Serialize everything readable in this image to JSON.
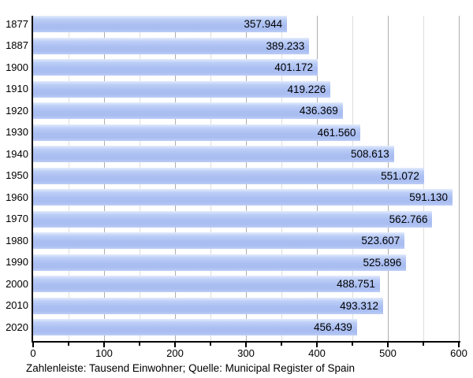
{
  "chart_data": {
    "type": "bar",
    "orientation": "horizontal",
    "title": "",
    "categories": [
      "1877",
      "1887",
      "1900",
      "1910",
      "1920",
      "1930",
      "1940",
      "1950",
      "1960",
      "1970",
      "1980",
      "1990",
      "2000",
      "2010",
      "2020"
    ],
    "values": [
      357.944,
      389.233,
      401.172,
      419.226,
      436.369,
      461.56,
      508.613,
      551.072,
      591.13,
      562.766,
      523.607,
      525.896,
      488.751,
      493.312,
      456.439
    ],
    "value_labels": [
      "357.944",
      "389.233",
      "401.172",
      "419.226",
      "436.369",
      "461.560",
      "508.613",
      "551.072",
      "591.130",
      "562.766",
      "523.607",
      "525.896",
      "488.751",
      "493.312",
      "456.439"
    ],
    "unit": "Tausend Einwohner",
    "xlabel": "",
    "ylabel": "",
    "xlim": [
      0,
      600
    ],
    "x_major_ticks": [
      0,
      100,
      200,
      300,
      400,
      500,
      600
    ],
    "x_minor_step": 50,
    "grid": true,
    "legend_position": "none"
  },
  "caption": "Zahlenleiste: Tausend Einwohner; Quelle: Municipal Register of Spain",
  "colors": {
    "bar_main": "#aabef1",
    "bar_highlight": "#e3ebfc",
    "grid_major": "#aeaeae",
    "grid_minor": "#dddddd",
    "axis": "#000000",
    "text": "#000000",
    "background": "#ffffff"
  }
}
